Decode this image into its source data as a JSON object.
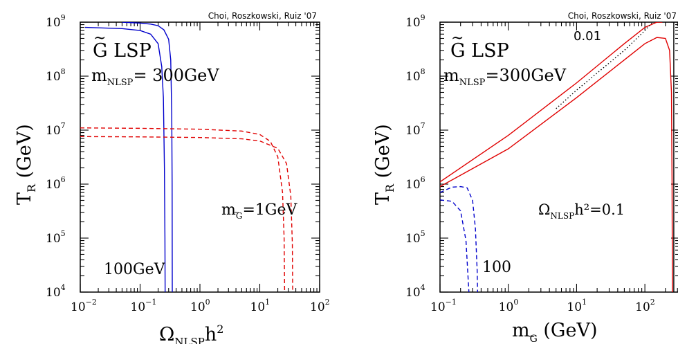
{
  "chart_data": [
    {
      "type": "line",
      "id": "left",
      "credit": "Choi, Roszkowski, Ruiz '07",
      "xscale": "log",
      "yscale": "log",
      "xlim": [
        0.01,
        100
      ],
      "ylim": [
        10000,
        1000000000
      ],
      "x_ticks": [
        {
          "base": "10",
          "exp": "−2"
        },
        {
          "base": "10",
          "exp": "−1"
        },
        {
          "base": "10",
          "exp": "0"
        },
        {
          "base": "10",
          "exp": "1"
        },
        {
          "base": "10",
          "exp": "2"
        }
      ],
      "y_ticks": [
        {
          "base": "10",
          "exp": "4"
        },
        {
          "base": "10",
          "exp": "5"
        },
        {
          "base": "10",
          "exp": "6"
        },
        {
          "base": "10",
          "exp": "7"
        },
        {
          "base": "10",
          "exp": "8"
        },
        {
          "base": "10",
          "exp": "9"
        }
      ],
      "xlabel": {
        "main": "Ω",
        "sub": "NLSP",
        "tail": "h",
        "sup": "2"
      },
      "ylabel": {
        "main": "T",
        "sub": "R",
        "tail": " (GeV)"
      },
      "annotations": {
        "lsp": "G LSP",
        "mass_main": "m",
        "mass_sub": "NLSP",
        "mass_value": "=  300GeV",
        "red_label_main": "m",
        "red_label_sub": "G",
        "red_label_value": "=1GeV",
        "blue_label": "100GeV"
      },
      "series": [
        {
          "color": "#0000cc",
          "style": "solid",
          "x": [
            0.012,
            0.05,
            0.1,
            0.15,
            0.2,
            0.23,
            0.245,
            0.255,
            0.26,
            0.262
          ],
          "y": [
            800000000,
            760000000,
            700000000,
            600000000,
            400000000,
            150000000,
            40000000,
            2000000,
            100000,
            10000
          ]
        },
        {
          "color": "#0000cc",
          "style": "solid",
          "x": [
            0.05,
            0.1,
            0.15,
            0.2,
            0.25,
            0.3,
            0.325,
            0.338,
            0.343,
            0.345
          ],
          "y": [
            1000000000,
            960000000,
            920000000,
            860000000,
            720000000,
            480000000,
            200000000,
            20000000,
            1000000,
            10000
          ]
        },
        {
          "color": "#e00000",
          "style": "dashed",
          "x": [
            0.01,
            0.1,
            1,
            5,
            10,
            15,
            20,
            24,
            25.5,
            26
          ],
          "y": [
            11000000,
            10800000,
            10400000,
            9600000,
            8300000,
            6200000,
            3200000,
            700000,
            100000,
            10000
          ]
        },
        {
          "color": "#e00000",
          "style": "dashed",
          "x": [
            0.01,
            0.1,
            1,
            5,
            10,
            20,
            28,
            33,
            35,
            35.5
          ],
          "y": [
            7600000,
            7500000,
            7300000,
            6900000,
            6300000,
            4600000,
            2400000,
            600000,
            80000,
            10000
          ]
        }
      ]
    },
    {
      "type": "line",
      "id": "right",
      "credit": "Choi, Roszkowski, Ruiz '07",
      "xscale": "log",
      "yscale": "log",
      "xlim": [
        0.1,
        320
      ],
      "ylim": [
        10000,
        1000000000
      ],
      "x_ticks": [
        {
          "base": "10",
          "exp": "−1"
        },
        {
          "base": "10",
          "exp": "0"
        },
        {
          "base": "10",
          "exp": "1"
        },
        {
          "base": "10",
          "exp": "2"
        }
      ],
      "y_ticks": [
        {
          "base": "10",
          "exp": "4"
        },
        {
          "base": "10",
          "exp": "5"
        },
        {
          "base": "10",
          "exp": "6"
        },
        {
          "base": "10",
          "exp": "7"
        },
        {
          "base": "10",
          "exp": "8"
        },
        {
          "base": "10",
          "exp": "9"
        }
      ],
      "xlabel": {
        "main": "m",
        "sub": "G",
        "tail": "  (GeV)"
      },
      "ylabel": {
        "main": "T",
        "sub": "R",
        "tail": " (GeV)"
      },
      "annotations": {
        "lsp": "G LSP",
        "mass_main": "m",
        "mass_sub": "NLSP",
        "mass_value": "=300GeV",
        "omega_main": "Ω",
        "omega_sub": "NLSP",
        "omega_value": "h²=0.1",
        "dotted_label": "0.01",
        "blue_label": "100"
      },
      "series": [
        {
          "color": "#e00000",
          "style": "solid",
          "x": [
            0.1,
            1,
            10,
            50,
            100,
            150,
            200,
            230,
            245,
            250,
            253
          ],
          "y": [
            900000,
            4500000,
            40000000,
            200000000,
            400000000,
            520000000,
            500000000,
            300000000,
            50000000,
            1000000,
            10000
          ]
        },
        {
          "color": "#e00000",
          "style": "solid",
          "x": [
            0.1,
            1,
            10,
            50,
            100,
            150,
            180
          ],
          "y": [
            1100000,
            8000000,
            75000000,
            400000000,
            800000000,
            1000000000,
            1000000000
          ]
        },
        {
          "color": "#000000",
          "style": "dotted",
          "x": [
            5,
            10,
            50,
            100,
            130
          ],
          "y": [
            25000000,
            55000000,
            300000000,
            700000000,
            1000000000
          ]
        },
        {
          "color": "#000000",
          "style": "solid",
          "x": [
            265,
            265
          ],
          "y": [
            10000,
            1000000000
          ]
        },
        {
          "color": "#0000cc",
          "style": "dashed",
          "x": [
            0.1,
            0.15,
            0.2,
            0.24,
            0.26,
            0.265
          ],
          "y": [
            510000,
            480000,
            320000,
            90000,
            15000,
            10000
          ]
        },
        {
          "color": "#0000cc",
          "style": "dashed",
          "x": [
            0.1,
            0.15,
            0.2,
            0.25,
            0.3,
            0.33,
            0.35,
            0.355
          ],
          "y": [
            700000,
            880000,
            900000,
            850000,
            500000,
            150000,
            25000,
            10000
          ]
        }
      ]
    }
  ]
}
